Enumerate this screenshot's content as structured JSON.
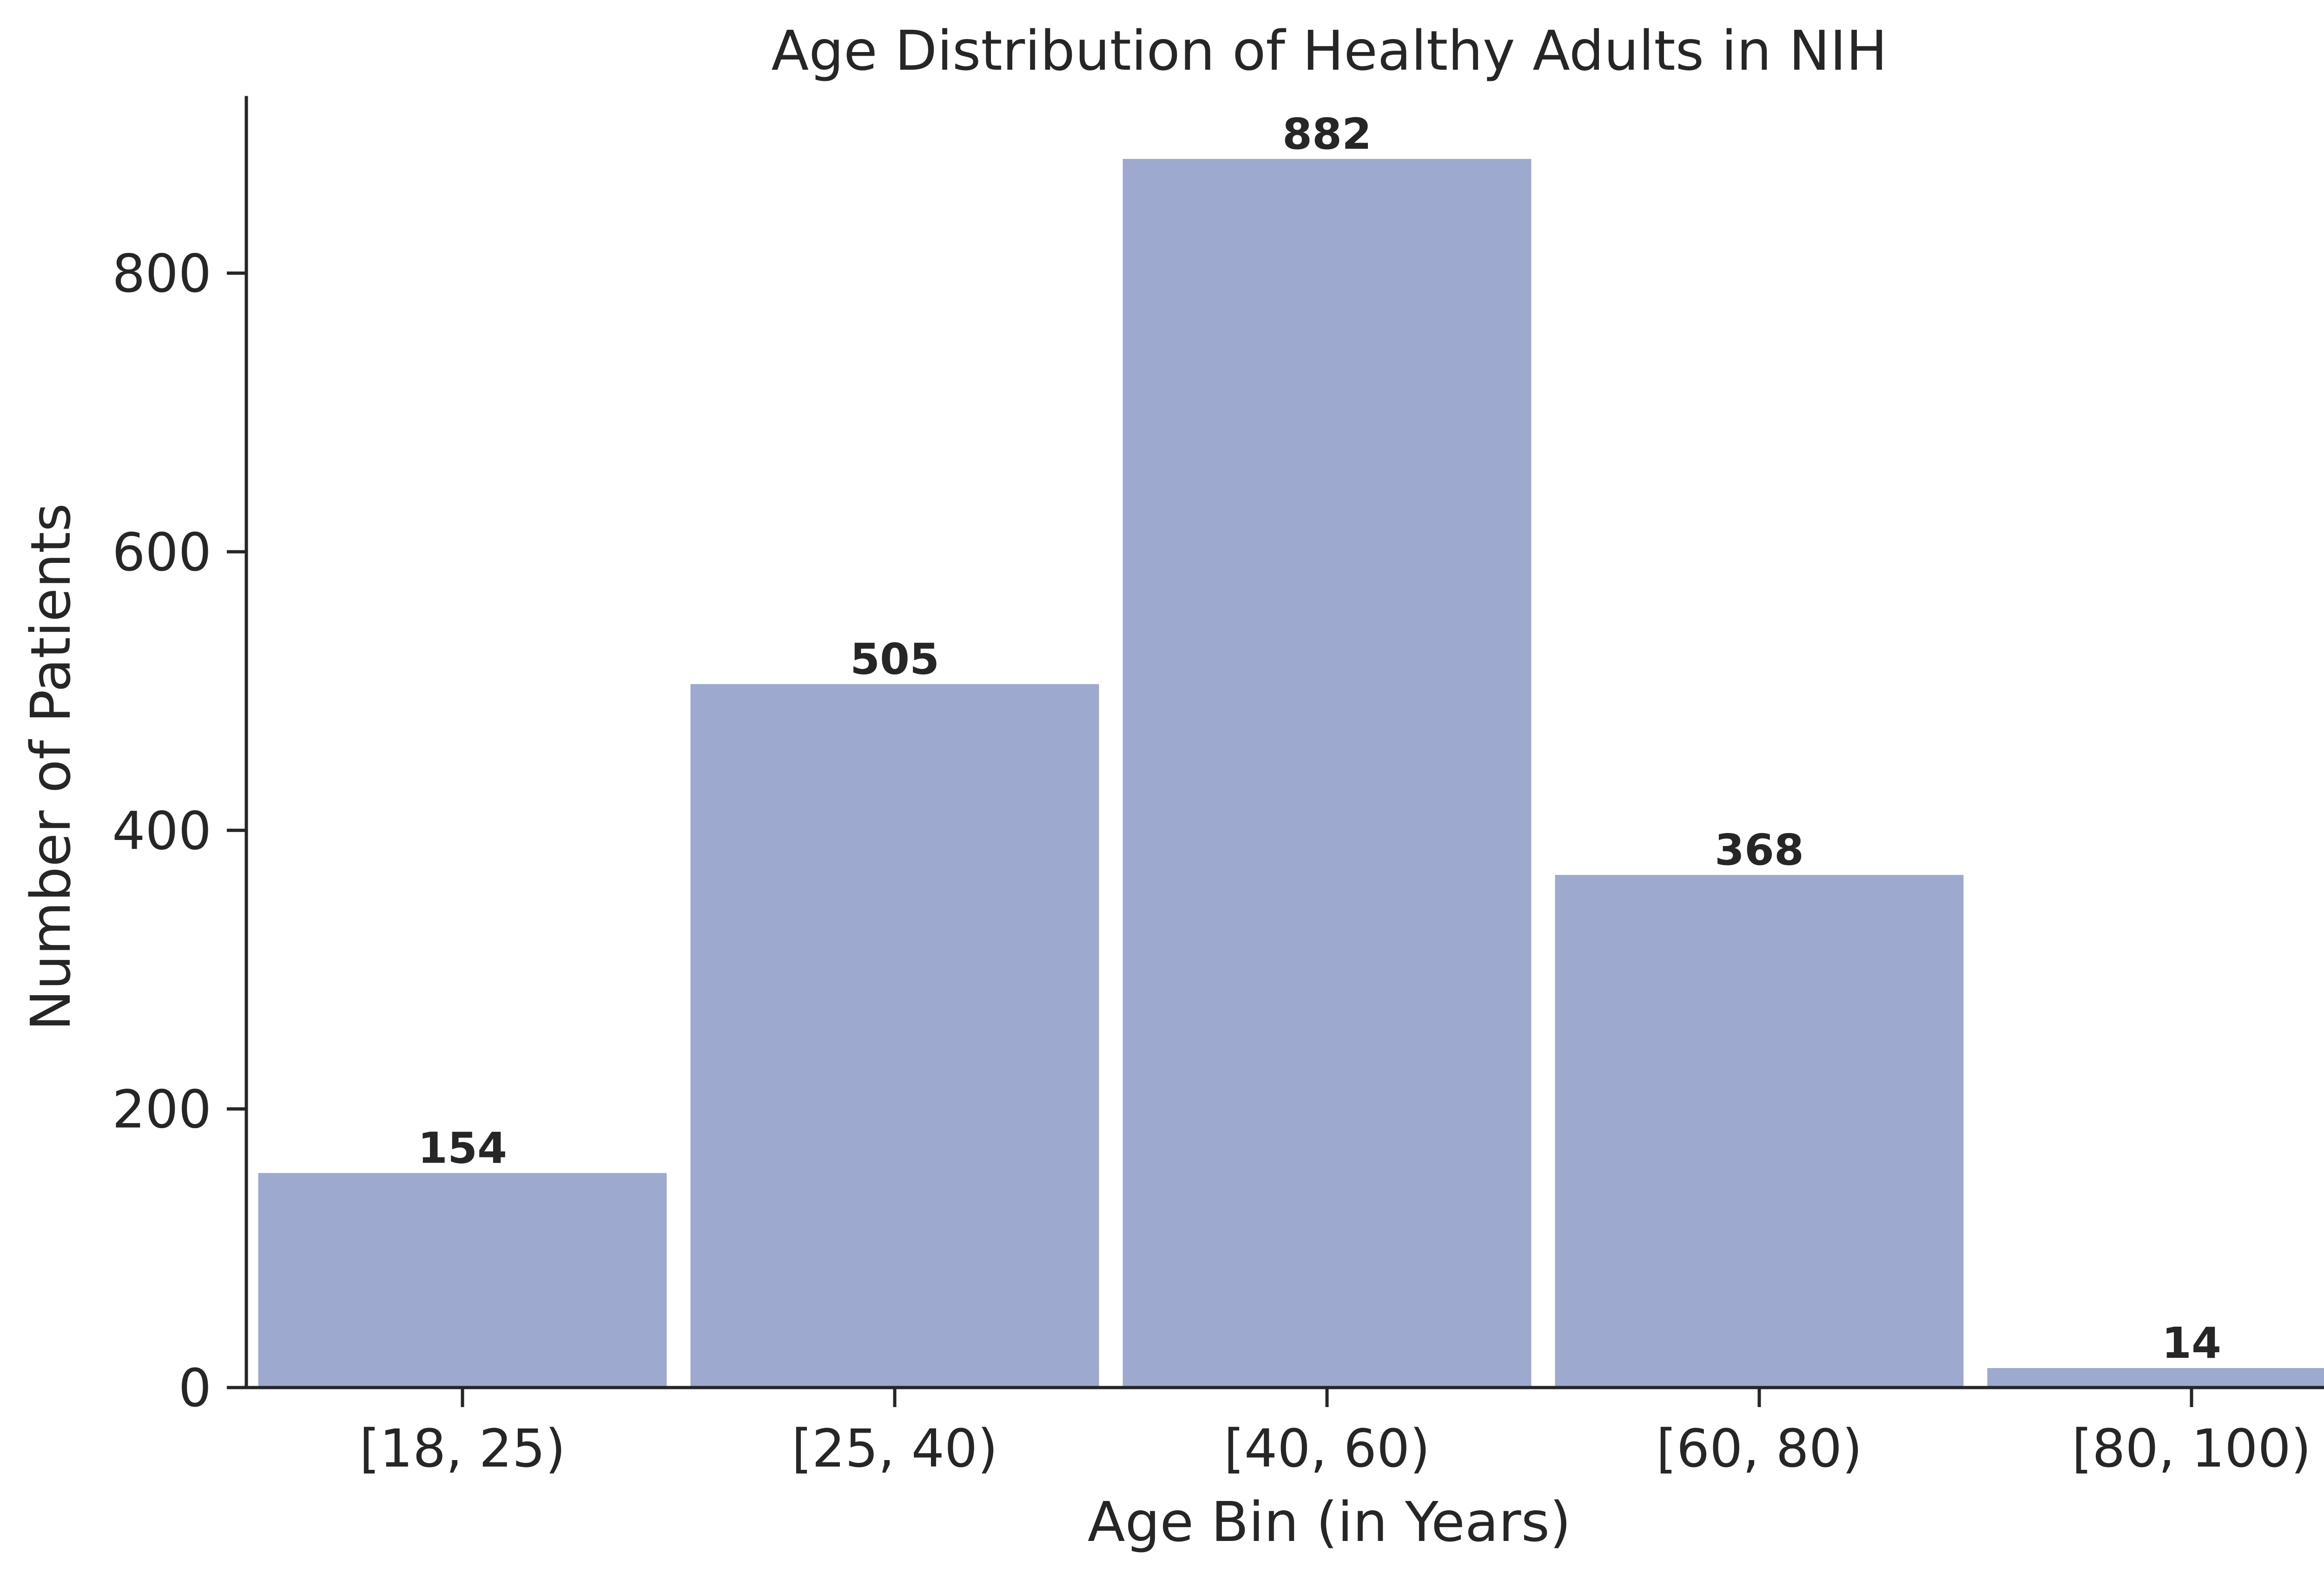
{
  "chart_data": {
    "type": "bar",
    "title": "Age Distribution of Healthy Adults in NIH",
    "xlabel": "Age Bin (in Years)",
    "ylabel": "Number of Patients",
    "categories": [
      "[18, 25)",
      "[25, 40)",
      "[40, 60)",
      "[60, 80)",
      "[80, 100)"
    ],
    "values": [
      154,
      505,
      882,
      368,
      14
    ],
    "data_labels": [
      "154",
      "505",
      "882",
      "368",
      "14"
    ],
    "ylim": [
      0,
      926
    ],
    "yticks": [
      0,
      200,
      400,
      600,
      800
    ],
    "ytick_labels": [
      "0",
      "200",
      "400",
      "600",
      "800"
    ],
    "grid": false,
    "bar_color": "#9da9ce",
    "text_color": "#262626"
  }
}
